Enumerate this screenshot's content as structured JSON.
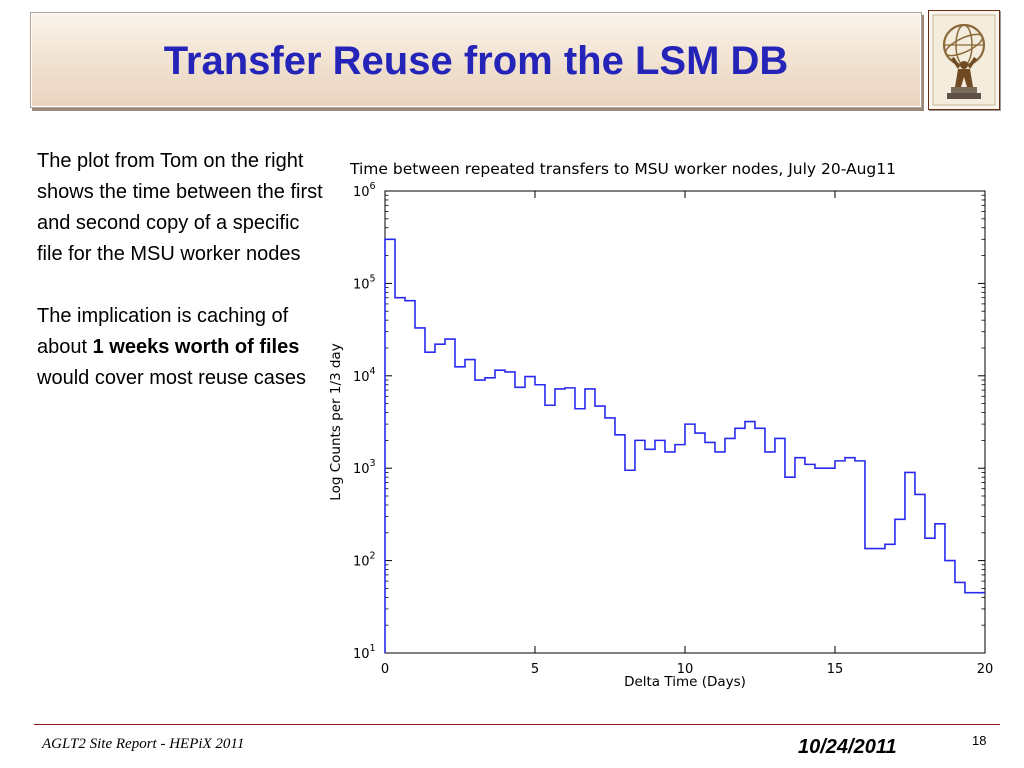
{
  "slide": {
    "title": "Transfer Reuse from the LSM DB",
    "para1": "The plot  from Tom on the right shows the time between the first and second copy of a specific file for the MSU worker nodes",
    "para2_pre": "The implication is caching of about ",
    "para2_bold": "1 weeks worth of files",
    "para2_post": " would cover most  reuse cases"
  },
  "footer": {
    "left": "AGLT2 Site Report - HEPiX 2011",
    "date": "10/24/2011",
    "page": "18"
  },
  "logo": {
    "icon": "atlas-statue-icon"
  },
  "colors": {
    "title": "#2424b8",
    "series": "#2a2aee",
    "rule": "#8b1a1a"
  },
  "chart_data": {
    "type": "step",
    "title": "Time between repeated transfers to MSU worker nodes, July 20-Aug11",
    "xlabel": "Delta Time (Days)",
    "ylabel": "Log Counts per 1/3 day",
    "xlim": [
      0,
      20
    ],
    "ylim": [
      10,
      1000000
    ],
    "yscale": "log",
    "bin_width_days": 0.3333,
    "xticks": [
      "0",
      "5",
      "10",
      "15",
      "20"
    ],
    "yticks": [
      {
        "base": "10",
        "exp": "1"
      },
      {
        "base": "10",
        "exp": "2"
      },
      {
        "base": "10",
        "exp": "3"
      },
      {
        "base": "10",
        "exp": "4"
      },
      {
        "base": "10",
        "exp": "5"
      },
      {
        "base": "10",
        "exp": "6"
      }
    ],
    "values": [
      300000,
      70000,
      65000,
      33000,
      18000,
      22000,
      25000,
      12500,
      15000,
      9000,
      9500,
      11500,
      11000,
      7500,
      9800,
      8000,
      4800,
      7200,
      7400,
      4400,
      7200,
      4700,
      3500,
      2300,
      950,
      2000,
      1600,
      2000,
      1500,
      1800,
      3000,
      2400,
      1900,
      1500,
      2100,
      2700,
      3200,
      2700,
      1500,
      2100,
      800,
      1300,
      1100,
      1000,
      1000,
      1200,
      1300,
      1200,
      135,
      135,
      150,
      280,
      900,
      520,
      175,
      250,
      100,
      58,
      45,
      45
    ]
  }
}
